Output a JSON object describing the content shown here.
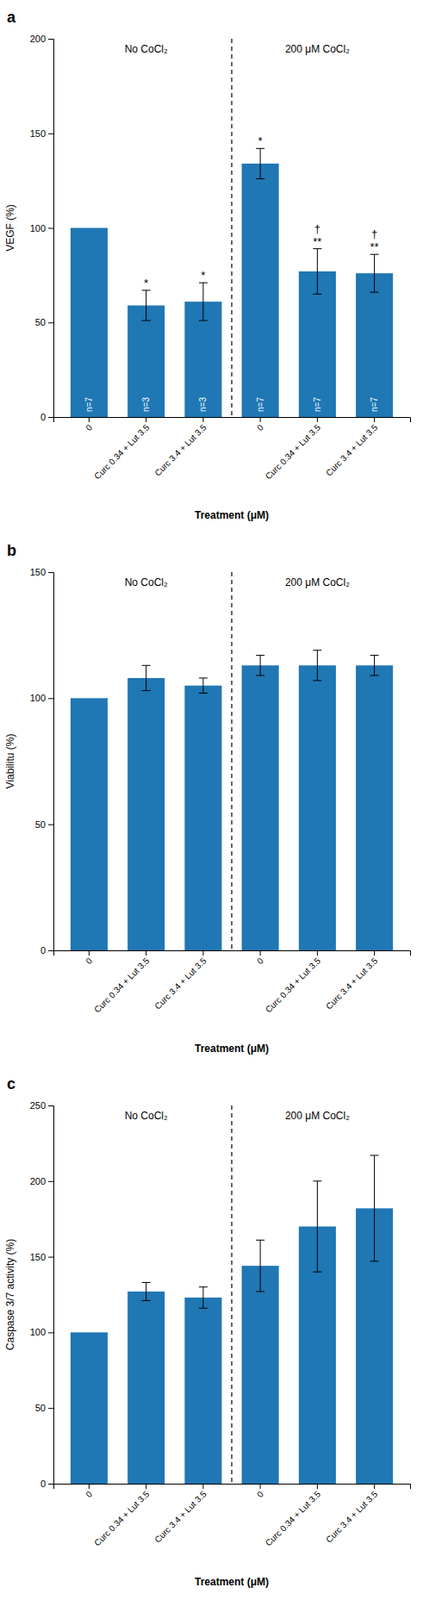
{
  "chart_data": [
    {
      "type": "bar",
      "title": "a",
      "ylabel": "VEGF (%)",
      "xlabel": "Treatment (μM)",
      "categories": [
        "0",
        "Curc 0.34 + Lut 3.5",
        "Curc 3.4 + Lut 3.5",
        "0",
        "Curc 0.34 + Lut 3.5",
        "Curc 3.4 + Lut 3.5"
      ],
      "values": [
        100,
        59,
        61,
        134,
        77,
        76
      ],
      "errors": [
        0,
        8,
        10,
        8,
        12,
        10
      ],
      "n_labels": [
        "n=7",
        "n=3",
        "n=3",
        "n=7",
        "n=7",
        "n=7"
      ],
      "significance": [
        [],
        [
          "*"
        ],
        [
          "*"
        ],
        [
          "*"
        ],
        [
          "**",
          "†"
        ],
        [
          "**",
          "†"
        ]
      ],
      "group_labels": [
        "No CoCl₂",
        "200 μM CoCl₂"
      ],
      "ylim": [
        0,
        200
      ],
      "yticks": [
        0,
        50,
        100,
        150,
        200
      ],
      "grid": false
    },
    {
      "type": "bar",
      "title": "b",
      "ylabel": "Viabilitu (%)",
      "xlabel": "Treatment (μM)",
      "categories": [
        "0",
        "Curc 0.34 + Lut 3.5",
        "Curc 3.4 + Lut 3.5",
        "0",
        "Curc 0.34 + Lut 3.5",
        "Curc 3.4 + Lut 3.5"
      ],
      "values": [
        100,
        108,
        105,
        113,
        113,
        113
      ],
      "errors": [
        0,
        5,
        3,
        4,
        6,
        4
      ],
      "group_labels": [
        "No CoCl₂",
        "200 μM CoCl₂"
      ],
      "ylim": [
        0,
        150
      ],
      "yticks": [
        0,
        50,
        100,
        150
      ],
      "grid": false
    },
    {
      "type": "bar",
      "title": "c",
      "ylabel": "Caspase 3/7 activity (%)",
      "xlabel": "Treatment (μM)",
      "categories": [
        "0",
        "Curc 0.34 + Lut 3.5",
        "Curc 3.4 + Lut 3.5",
        "0",
        "Curc 0.34 + Lut 3.5",
        "Curc 3.4 + Lut 3.5"
      ],
      "values": [
        100,
        127,
        123,
        144,
        170,
        182
      ],
      "errors": [
        0,
        6,
        7,
        17,
        30,
        35
      ],
      "group_labels": [
        "No CoCl₂",
        "200 μM CoCl₂"
      ],
      "ylim": [
        0,
        250
      ],
      "yticks": [
        0,
        50,
        100,
        150,
        200,
        250
      ],
      "grid": false
    }
  ]
}
